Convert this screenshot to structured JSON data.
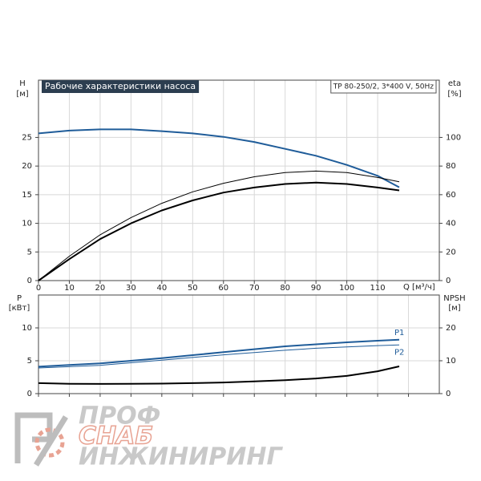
{
  "chart_data": [
    {
      "type": "line",
      "title": "Рабочие характеристики насоса",
      "subtitle": "TP 80-250/2, 3*400 V, 50Hz",
      "ylabel": "H",
      "yunit": "[м]",
      "y2label": "eta",
      "y2unit": "[%]",
      "xlabel": "Q [м³/ч]",
      "x": [
        0,
        10,
        20,
        30,
        40,
        50,
        60,
        70,
        80,
        90,
        100,
        110,
        117
      ],
      "xlim": [
        0,
        130
      ],
      "xticks": [
        0,
        10,
        20,
        30,
        40,
        50,
        60,
        70,
        80,
        90,
        100,
        110
      ],
      "ylim": [
        0,
        35
      ],
      "yticks": [
        0,
        5,
        10,
        15,
        20,
        25
      ],
      "y2lim": [
        0,
        140
      ],
      "y2ticks": [
        0,
        20,
        40,
        60,
        80,
        100
      ],
      "grid": true,
      "series": [
        {
          "color": "#1f5c99",
          "line_width": 2,
          "values": [
            25.7,
            26.2,
            26.4,
            26.4,
            26.1,
            25.7,
            25.1,
            24.2,
            23.0,
            21.8,
            20.2,
            18.3,
            16.3
          ]
        },
        {
          "color": "#000000",
          "line_width": 1,
          "axis": "y2",
          "values": [
            0,
            17,
            32,
            44,
            54,
            62,
            68,
            72.5,
            75.5,
            76.5,
            75.5,
            72,
            69
          ]
        },
        {
          "color": "#000000",
          "line_width": 2,
          "axis": "y2",
          "values": [
            0,
            15,
            29,
            40,
            49,
            56,
            61.5,
            65,
            67.5,
            68.5,
            67.5,
            65,
            63
          ]
        }
      ]
    },
    {
      "type": "line",
      "ylabel": "P",
      "yunit": "[кВт]",
      "y2label": "NPSH",
      "y2unit": "[м]",
      "x": [
        0,
        10,
        20,
        30,
        40,
        50,
        60,
        70,
        80,
        90,
        100,
        110,
        117
      ],
      "xlim": [
        0,
        130
      ],
      "xticks": [
        0,
        10,
        20,
        30,
        40,
        50,
        60,
        70,
        80,
        90,
        100,
        110,
        120
      ],
      "ylim": [
        0,
        15
      ],
      "yticks": [
        0,
        5,
        10
      ],
      "y2lim": [
        0,
        30
      ],
      "y2ticks": [
        0,
        10,
        20
      ],
      "grid": true,
      "series": [
        {
          "name": "P1",
          "color": "#1f5c99",
          "line_width": 2,
          "values": [
            4.1,
            4.35,
            4.6,
            5.0,
            5.4,
            5.85,
            6.3,
            6.75,
            7.2,
            7.5,
            7.8,
            8.05,
            8.2
          ]
        },
        {
          "name": "P2",
          "color": "#1f5c99",
          "line_width": 1,
          "values": [
            3.9,
            4.1,
            4.3,
            4.7,
            5.1,
            5.5,
            5.9,
            6.25,
            6.6,
            6.9,
            7.1,
            7.3,
            7.4
          ]
        },
        {
          "color": "#000000",
          "line_width": 2,
          "axis": "y2",
          "values": [
            3.2,
            3.0,
            2.95,
            3.0,
            3.05,
            3.2,
            3.4,
            3.7,
            4.1,
            4.6,
            5.4,
            6.8,
            8.3
          ]
        }
      ]
    }
  ],
  "watermark": {
    "line1": "ПРОФ",
    "line2": "СНАБ",
    "line3": "ИНЖИНИРИНГ"
  }
}
